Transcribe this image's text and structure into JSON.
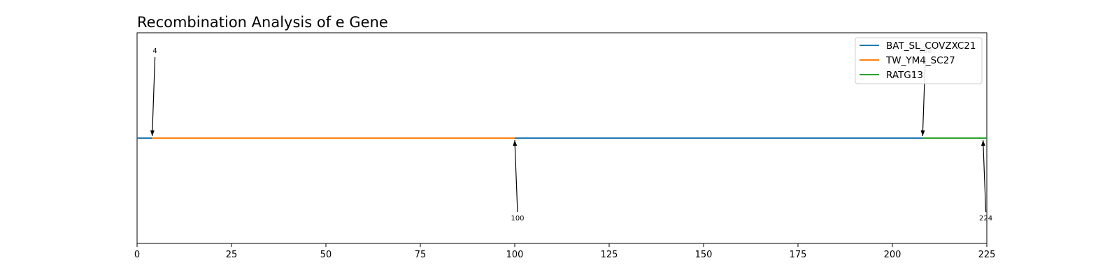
{
  "chart_data": {
    "type": "line",
    "title": "Recombination Analysis of e Gene",
    "xlabel": "",
    "ylabel": "",
    "xlim": [
      0,
      225
    ],
    "x_ticks": [
      0,
      25,
      50,
      75,
      100,
      125,
      150,
      175,
      200,
      225
    ],
    "grid": false,
    "legend_placement": "top-right",
    "series": [
      {
        "name": "BAT_SL_COVZXC21",
        "color": "#1f77b4",
        "segments": [
          [
            0,
            4
          ],
          [
            100,
            208
          ]
        ]
      },
      {
        "name": "TW_YM4_SC27",
        "color": "#ff7f0e",
        "segments": [
          [
            4,
            100
          ]
        ]
      },
      {
        "name": "RATG13",
        "color": "#2ca02c",
        "segments": [
          [
            208,
            225
          ]
        ]
      }
    ],
    "annotations": [
      {
        "label": "4",
        "x": 4,
        "side": "above"
      },
      {
        "label": "100",
        "x": 100,
        "side": "below"
      },
      {
        "label": "208",
        "x": 208,
        "side": "above"
      },
      {
        "label": "224",
        "x": 224,
        "side": "below"
      }
    ]
  }
}
